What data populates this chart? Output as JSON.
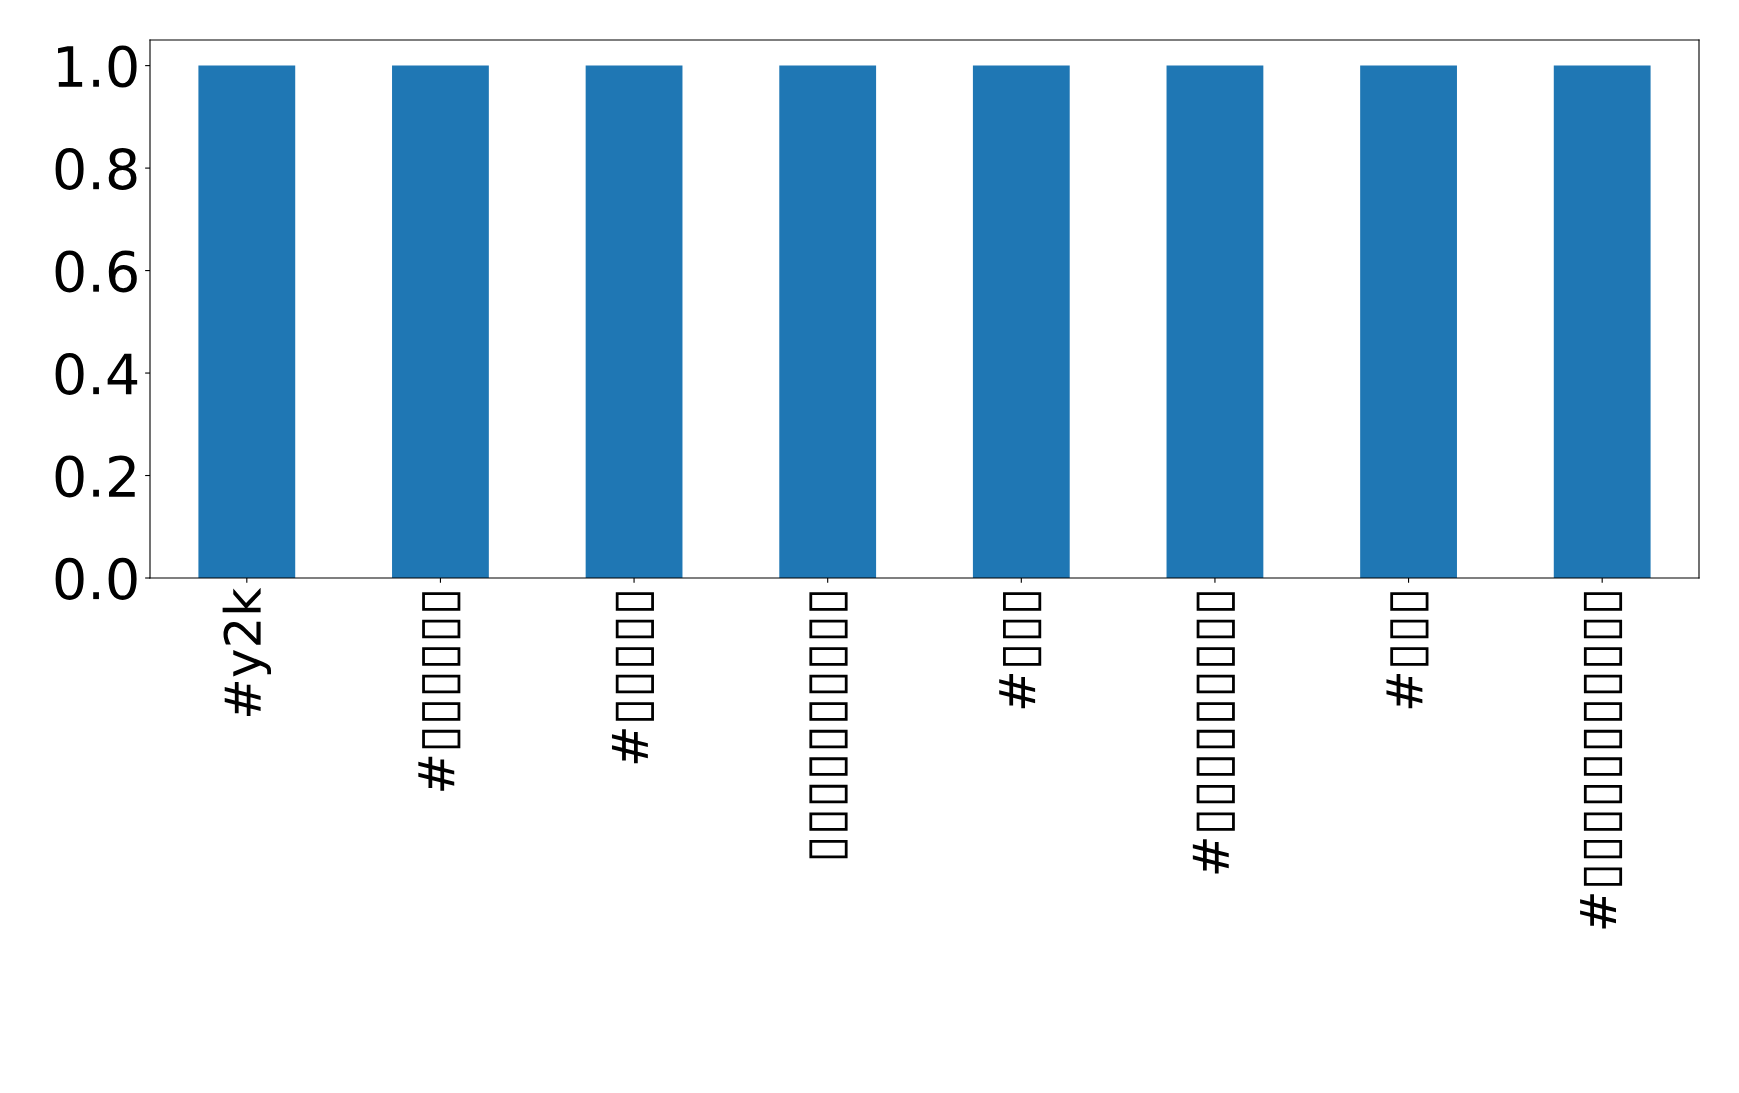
{
  "chart_data": {
    "type": "bar",
    "categories": [
      "#y2k",
      "#▯▯▯▯▯▯",
      "#▯▯▯▯▯",
      "▯▯▯▯▯▯▯▯▯▯",
      "#▯▯▯",
      "#▯▯▯▯▯▯▯▯▯",
      "#▯▯▯",
      "#▯▯▯▯▯▯▯▯▯▯▯"
    ],
    "values": [
      1,
      1,
      1,
      1,
      1,
      1,
      1,
      1
    ],
    "color": "#1f77b4",
    "ylim": [
      0,
      1.05
    ],
    "yticks": [
      {
        "value": 0,
        "label": "0.0"
      },
      {
        "value": 0.2,
        "label": "0.2"
      },
      {
        "value": 0.4,
        "label": "0.4"
      },
      {
        "value": 0.6,
        "label": "0.6"
      },
      {
        "value": 0.8,
        "label": "0.8"
      },
      {
        "value": 1,
        "label": "1.0"
      }
    ],
    "grid": false,
    "legend": false
  }
}
